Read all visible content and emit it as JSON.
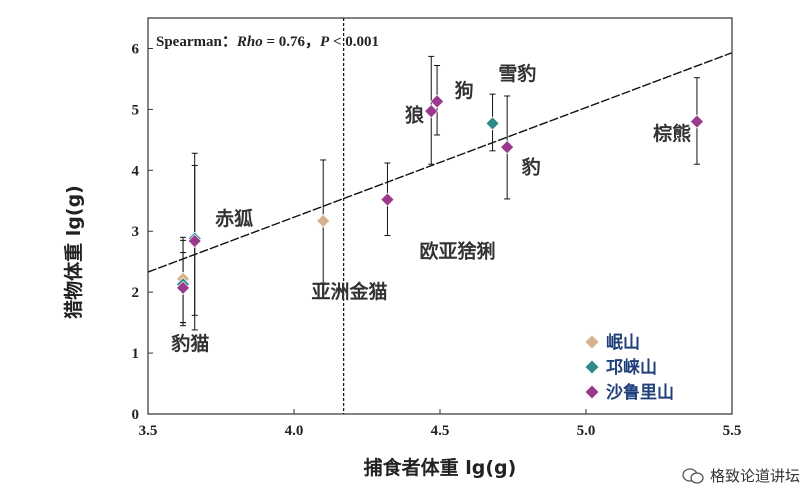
{
  "chart_data": {
    "type": "scatter",
    "xlabel": "捕食者体重 lg(g)",
    "ylabel": "猎物体重 lg(g)",
    "xlim": [
      3.5,
      5.5
    ],
    "ylim": [
      0,
      6.5
    ],
    "xticks": [
      3.5,
      4.0,
      4.5,
      5.0,
      5.5
    ],
    "xtick_labels": [
      "3.5",
      "4.0",
      "4.5",
      "5.0",
      "5.5"
    ],
    "yticks": [
      0,
      1,
      2,
      3,
      4,
      5,
      6
    ],
    "ytick_labels": [
      "0",
      "1",
      "2",
      "3",
      "4",
      "5",
      "6"
    ],
    "annotation": {
      "prefix": "Spearman：",
      "rho_label": "Rho",
      "rho_value": " = 0.76，",
      "p_label": "P",
      "p_value": " < 0.001"
    },
    "regression_line": {
      "x": [
        3.5,
        5.5
      ],
      "y": [
        2.33,
        5.93
      ],
      "style": "dashed"
    },
    "vertical_reference_line": {
      "x": 4.17,
      "style": "dashed"
    },
    "series": [
      {
        "name": "岷山",
        "color": "#d4b28c"
      },
      {
        "name": "邛崃山",
        "color": "#2e8b88"
      },
      {
        "name": "沙鲁里山",
        "color": "#9b3a8c"
      }
    ],
    "points": [
      {
        "species": "豹猫",
        "series": 0,
        "x": 3.62,
        "y": 2.22,
        "ylow": 1.5,
        "yhigh": 2.85
      },
      {
        "species": "豹猫",
        "series": 1,
        "x": 3.62,
        "y": 2.13,
        "ylow": 1.5,
        "yhigh": 2.9
      },
      {
        "species": "豹猫",
        "series": 2,
        "x": 3.62,
        "y": 2.07,
        "ylow": 1.45,
        "yhigh": 2.65
      },
      {
        "species": "赤狐",
        "series": 1,
        "x": 3.66,
        "y": 2.88,
        "ylow": 1.62,
        "yhigh": 4.08
      },
      {
        "species": "赤狐",
        "series": 2,
        "x": 3.66,
        "y": 2.84,
        "ylow": 1.38,
        "yhigh": 4.28
      },
      {
        "species": "亚洲金猫",
        "series": 0,
        "x": 4.1,
        "y": 3.17,
        "ylow": 2.15,
        "yhigh": 4.17
      },
      {
        "species": "欧亚猞猁",
        "series": 2,
        "x": 4.32,
        "y": 3.52,
        "ylow": 2.93,
        "yhigh": 4.12
      },
      {
        "species": "狼",
        "series": 2,
        "x": 4.47,
        "y": 4.97,
        "ylow": 4.1,
        "yhigh": 5.87
      },
      {
        "species": "狗",
        "series": 2,
        "x": 4.49,
        "y": 5.13,
        "ylow": 4.58,
        "yhigh": 5.72
      },
      {
        "species": "雪豹",
        "series": 1,
        "x": 4.68,
        "y": 4.77,
        "ylow": 4.32,
        "yhigh": 5.25
      },
      {
        "species": "豹",
        "series": 2,
        "x": 4.73,
        "y": 4.38,
        "ylow": 3.53,
        "yhigh": 5.22
      },
      {
        "species": "棕熊",
        "series": 2,
        "x": 5.38,
        "y": 4.8,
        "ylow": 4.1,
        "yhigh": 5.52
      }
    ],
    "point_labels": [
      {
        "text": "豹猫",
        "x": 3.58,
        "y": 1.05
      },
      {
        "text": "赤狐",
        "x": 3.73,
        "y": 3.1
      },
      {
        "text": "亚洲金猫",
        "x": 4.06,
        "y": 1.9
      },
      {
        "text": "欧亚猞猁",
        "x": 4.43,
        "y": 2.57
      },
      {
        "text": "狼",
        "x": 4.38,
        "y": 4.8
      },
      {
        "text": "狗",
        "x": 4.55,
        "y": 5.2
      },
      {
        "text": "雪豹",
        "x": 4.7,
        "y": 5.48
      },
      {
        "text": "豹",
        "x": 4.78,
        "y": 3.95
      },
      {
        "text": "棕熊",
        "x": 5.23,
        "y": 4.5
      }
    ]
  },
  "legend": {
    "items": [
      {
        "label": "岷山",
        "color": "#d4b28c"
      },
      {
        "label": "邛崃山",
        "color": "#2e8b88"
      },
      {
        "label": "沙鲁里山",
        "color": "#9b3a8c"
      }
    ]
  },
  "watermark": {
    "text": "格致论道讲坛"
  }
}
